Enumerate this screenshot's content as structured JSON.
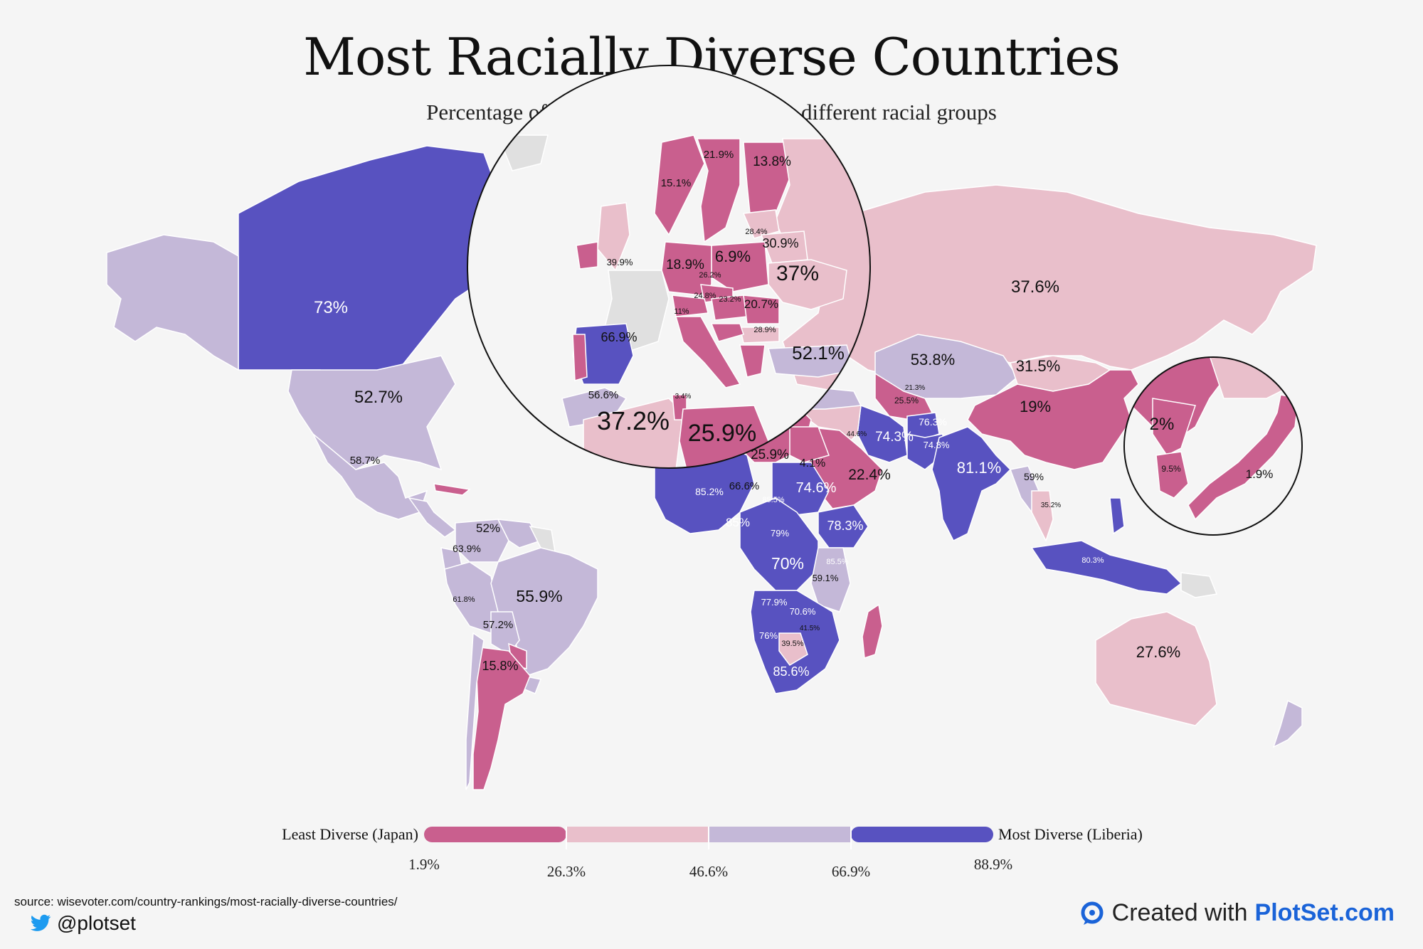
{
  "title": "Most Racially Diverse Countries",
  "subtitle": "Percentage of the population belonging to different racial groups",
  "colors": {
    "bin1": "#c95f8e",
    "bin2": "#e9bfcb",
    "bin3": "#c4b8d8",
    "bin4": "#5852c0",
    "nodata": "#e0e0e0",
    "background": "#f5f5f5"
  },
  "legend": {
    "least_label": "Least Diverse (Japan)",
    "most_label": "Most Diverse (Liberia)",
    "ticks": [
      "1.9%",
      "26.3%",
      "46.6%",
      "66.9%",
      "88.9%"
    ]
  },
  "chart_data": {
    "type": "choropleth",
    "bins": [
      1.9,
      26.3,
      46.6,
      66.9,
      88.9
    ],
    "regions": [
      {
        "name": "Canada",
        "label": "73%",
        "value": 73
      },
      {
        "name": "United States",
        "label": "52.7%",
        "value": 52.7
      },
      {
        "name": "Mexico",
        "label": "58.7%",
        "value": 58.7
      },
      {
        "name": "Colombia",
        "label": "52%",
        "value": 52
      },
      {
        "name": "Ecuador",
        "label": "63.9%",
        "value": 63.9
      },
      {
        "name": "Peru",
        "label": "61.8%",
        "value": 61.8
      },
      {
        "name": "Bolivia",
        "label": "57.2%",
        "value": 57.2
      },
      {
        "name": "Brazil",
        "label": "55.9%",
        "value": 55.9
      },
      {
        "name": "Argentina",
        "label": "15.8%",
        "value": 15.8
      },
      {
        "name": "Ireland",
        "label": "",
        "value": 10
      },
      {
        "name": "United Kingdom",
        "label": "39.9%",
        "value": 39.9
      },
      {
        "name": "Norway",
        "label": "15.1%",
        "value": 15.1
      },
      {
        "name": "Sweden",
        "label": "21.9%",
        "value": 21.9
      },
      {
        "name": "Finland",
        "label": "13.8%",
        "value": 13.8
      },
      {
        "name": "Germany",
        "label": "18.9%",
        "value": 18.9
      },
      {
        "name": "Poland",
        "label": "6.9%",
        "value": 6.9
      },
      {
        "name": "Czechia",
        "label": "26.2%",
        "value": 26.2
      },
      {
        "name": "Austria",
        "label": "24.8%",
        "value": 24.8
      },
      {
        "name": "Italy",
        "label": "11%",
        "value": 11
      },
      {
        "name": "Hungary",
        "label": "23.2%",
        "value": 23.2
      },
      {
        "name": "Romania",
        "label": "20.7%",
        "value": 20.7
      },
      {
        "name": "Bulgaria",
        "label": "28.9%",
        "value": 28.9
      },
      {
        "name": "Lithuania",
        "label": "28.4%",
        "value": 28.4
      },
      {
        "name": "Belarus",
        "label": "30.9%",
        "value": 30.9
      },
      {
        "name": "Ukraine",
        "label": "37%",
        "value": 37
      },
      {
        "name": "Spain",
        "label": "66.9%",
        "value": 66.9
      },
      {
        "name": "Turkey",
        "label": "52.1%",
        "value": 52.1
      },
      {
        "name": "Morocco",
        "label": "56.6%",
        "value": 56.6
      },
      {
        "name": "Algeria",
        "label": "37.2%",
        "value": 37.2
      },
      {
        "name": "Tunisia",
        "label": "3.4%",
        "value": 3.4
      },
      {
        "name": "Libya",
        "label": "25.9%",
        "value": 25.9
      },
      {
        "name": "Egypt",
        "label": "4.1%",
        "value": 4.1
      },
      {
        "name": "Chad",
        "label": "25.9%",
        "value": 25.9
      },
      {
        "name": "Niger",
        "label": "66.6%",
        "value": 66.6
      },
      {
        "name": "Mali",
        "label": "85.2%",
        "value": 85.2
      },
      {
        "name": "Nigeria",
        "label": "85%",
        "value": 85
      },
      {
        "name": "Sudan",
        "label": "74.6%",
        "value": 74.6
      },
      {
        "name": "Cameroon",
        "label": "85.5%",
        "value": 85.5
      },
      {
        "name": "Ethiopia",
        "label": "78.3%",
        "value": 78.3
      },
      {
        "name": "Central African Republic",
        "label": "79%",
        "value": 79
      },
      {
        "name": "Congo (DRC)",
        "label": "70%",
        "value": 70
      },
      {
        "name": "Kenya",
        "label": "85.5%",
        "value": 85.5
      },
      {
        "name": "Tanzania",
        "label": "59.1%",
        "value": 59.1
      },
      {
        "name": "Zambia",
        "label": "77.9%",
        "value": 77.9
      },
      {
        "name": "Mozambique",
        "label": "70.6%",
        "value": 70.6
      },
      {
        "name": "Angola",
        "label": "76%",
        "value": 76
      },
      {
        "name": "Zimbabwe",
        "label": "41.5%",
        "value": 41.5
      },
      {
        "name": "Botswana",
        "label": "39.5%",
        "value": 39.5
      },
      {
        "name": "South Africa",
        "label": "85.6%",
        "value": 85.6
      },
      {
        "name": "Madagascar",
        "label": "",
        "value": 19.4
      },
      {
        "name": "Saudi Arabia",
        "label": "22.4%",
        "value": 22.4
      },
      {
        "name": "Iraq",
        "label": "44.6%",
        "value": 44.6
      },
      {
        "name": "Iran",
        "label": "74.3%",
        "value": 74.3
      },
      {
        "name": "Afghanistan",
        "label": "76.3%",
        "value": 76.3
      },
      {
        "name": "Pakistan",
        "label": "74.8%",
        "value": 74.8
      },
      {
        "name": "India",
        "label": "81.1%",
        "value": 81.1
      },
      {
        "name": "Kazakhstan",
        "label": "53.8%",
        "value": 53.8
      },
      {
        "name": "Uzbekistan",
        "label": "21.3%",
        "value": 21.3
      },
      {
        "name": "Turkmenistan",
        "label": "25.5%",
        "value": 25.5
      },
      {
        "name": "Russia",
        "label": "37.6%",
        "value": 37.6
      },
      {
        "name": "Mongolia",
        "label": "31.5%",
        "value": 31.5
      },
      {
        "name": "China",
        "label": "19%",
        "value": 19
      },
      {
        "name": "Myanmar",
        "label": "59%",
        "value": 59
      },
      {
        "name": "Thailand",
        "label": "35.2%",
        "value": 35.2
      },
      {
        "name": "Indonesia",
        "label": "80.3%",
        "value": 80.3
      },
      {
        "name": "North Korea",
        "label": "2%",
        "value": 2
      },
      {
        "name": "South Korea",
        "label": "9.5%",
        "value": 9.5
      },
      {
        "name": "Japan",
        "label": "1.9%",
        "value": 1.9
      },
      {
        "name": "Australia",
        "label": "27.6%",
        "value": 27.6
      },
      {
        "name": "New Zealand",
        "label": "",
        "value": 55
      }
    ]
  },
  "footer": {
    "source": "source: wisevoter.com/country-rankings/most-racially-diverse-countries/",
    "twitter_icon": "twitter-bird-icon",
    "twitter_handle": "@plotset",
    "credit_icon": "plotset-logo-icon",
    "credit_prefix": "Created with",
    "credit_brand": "PlotSet.com"
  }
}
